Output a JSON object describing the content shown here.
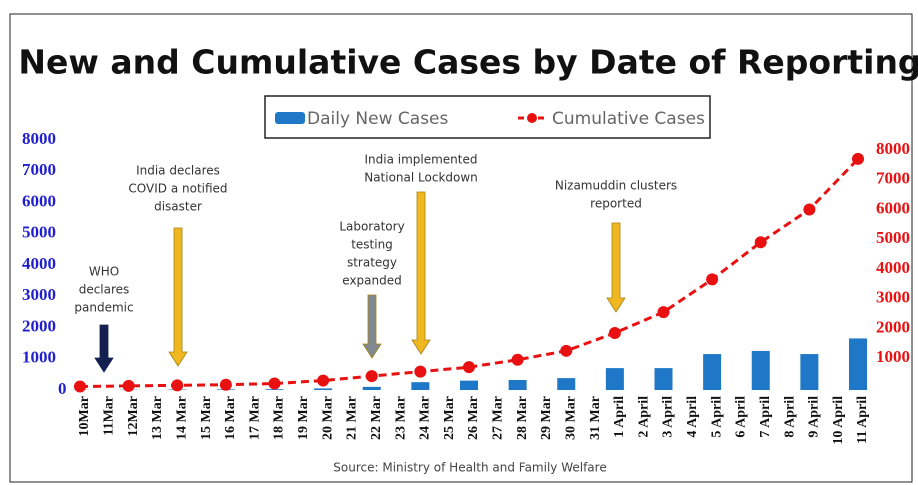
{
  "chart_data": {
    "type": "bar-line",
    "title": "New and Cumulative Cases by Date of Reporting",
    "source": "Source: Ministry of Health and Family Welfare",
    "categories": [
      "10Mar",
      "12Mar",
      "14 Mar",
      "16 Mar",
      "18 Mar",
      "20 Mar",
      "22 Mar",
      "24 Mar",
      "26 Mar",
      "28 Mar",
      "30 Mar",
      "1 April",
      "3 April",
      "5 April",
      "7 April",
      "9 April",
      "11 April"
    ],
    "between_labels": [
      "11Mar",
      "13 Mar",
      "15 Mar",
      "17 Mar",
      "19 Mar",
      "21 Mar",
      "23 Mar",
      "25 Mar",
      "27 Mar",
      "29 Mar",
      "31 Mar",
      "2 April",
      "4 April",
      "6 April",
      "8 April",
      "10 April"
    ],
    "series": [
      {
        "name": "Daily New Cases",
        "color": "#1f77c8",
        "kind": "bar",
        "values": [
          5,
          10,
          15,
          20,
          25,
          50,
          100,
          250,
          300,
          320,
          380,
          700,
          700,
          1150,
          1250,
          1150,
          1650
        ]
      },
      {
        "name": "Cumulative Cases",
        "color": "#e81010",
        "kind": "line",
        "axis": "y2",
        "values": [
          50,
          70,
          90,
          110,
          150,
          250,
          400,
          550,
          700,
          950,
          1250,
          1850,
          2550,
          3650,
          4900,
          6000,
          7700
        ]
      }
    ],
    "ylim": [
      0,
      8000
    ],
    "yticks": [
      0,
      1000,
      2000,
      3000,
      4000,
      5000,
      6000,
      7000,
      8000
    ],
    "y2lim": [
      0,
      8000
    ],
    "y2ticks": [
      1000,
      2000,
      3000,
      4000,
      5000,
      6000,
      7000,
      8000
    ],
    "annotations": [
      {
        "lines": [
          "WHO",
          "declares",
          "pandemic"
        ]
      },
      {
        "lines": [
          "India declares",
          "COVID a notified",
          "disaster"
        ]
      },
      {
        "lines": [
          "Laboratory",
          "testing",
          "strategy",
          "expanded"
        ]
      },
      {
        "lines": [
          "India implemented",
          "National Lockdown"
        ]
      },
      {
        "lines": [
          "Nizamuddin clusters",
          "reported"
        ]
      }
    ]
  }
}
